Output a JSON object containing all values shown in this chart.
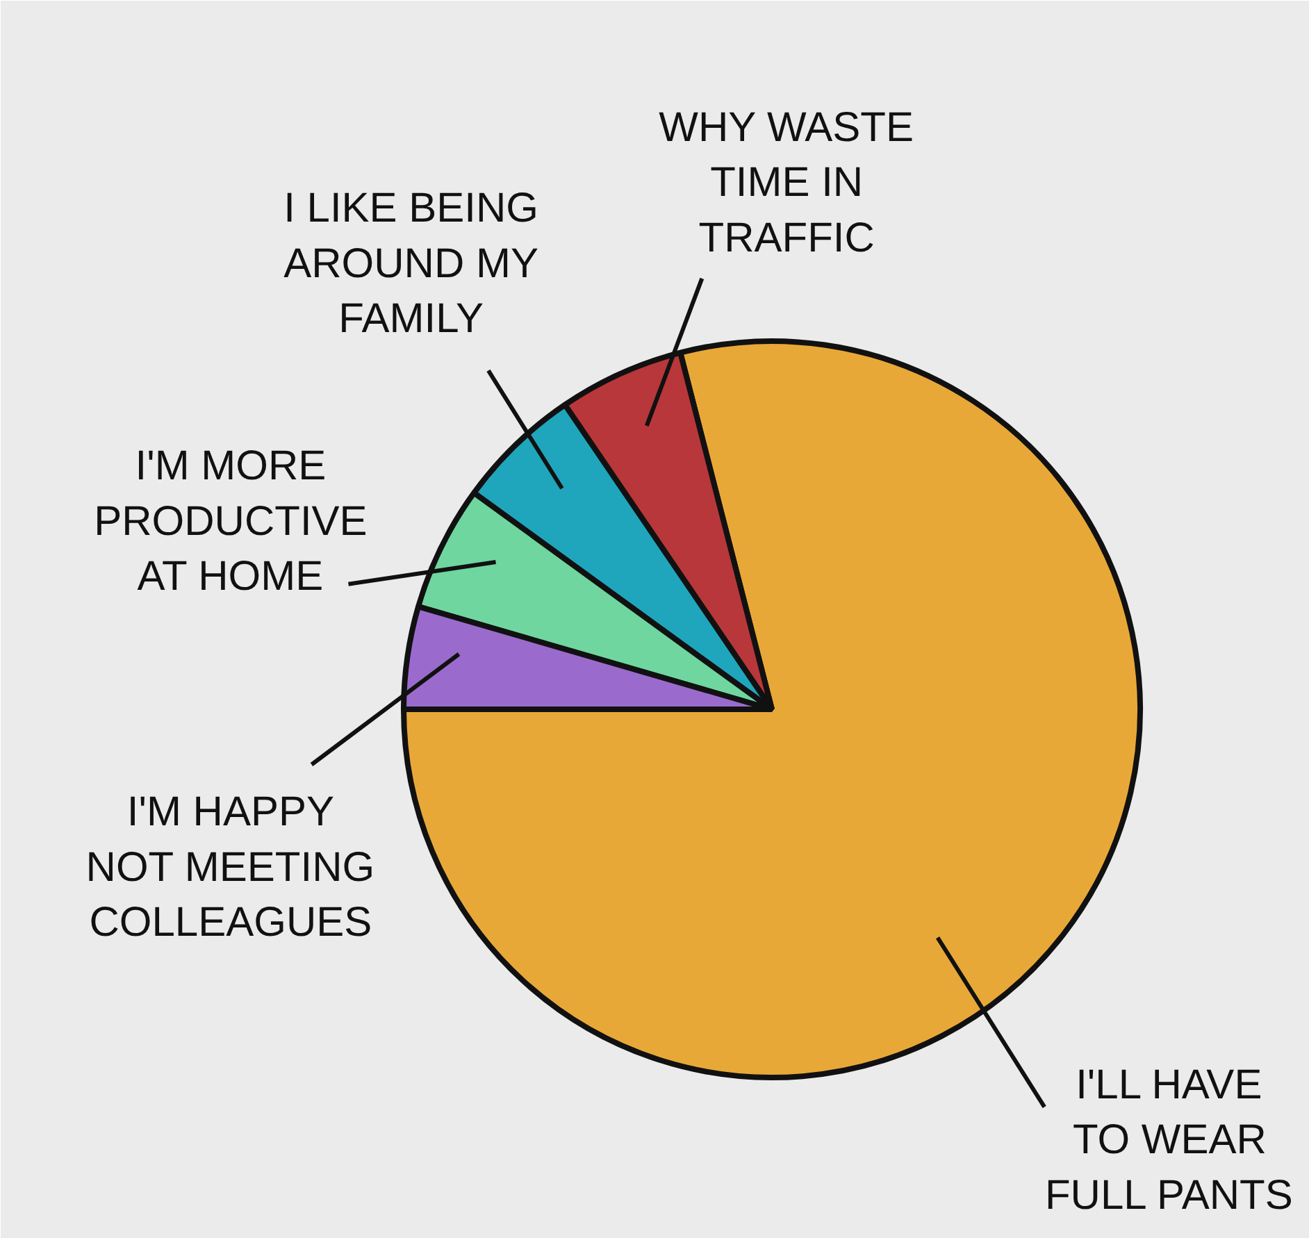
{
  "chart_data": {
    "type": "pie",
    "categories": [
      "I'LL HAVE TO WEAR FULL PANTS",
      "WHY WASTE TIME IN TRAFFIC",
      "I LIKE BEING AROUND MY FAMILY",
      "I'M MORE PRODUCTIVE AT HOME",
      "I'M HAPPY NOT MEETING COLLEAGUES"
    ],
    "values": [
      79,
      5.5,
      5.5,
      5.5,
      4.5
    ],
    "colors": [
      "#e8a838",
      "#b8373a",
      "#1fa6bd",
      "#6fd6a0",
      "#9a6bcc"
    ]
  }
}
